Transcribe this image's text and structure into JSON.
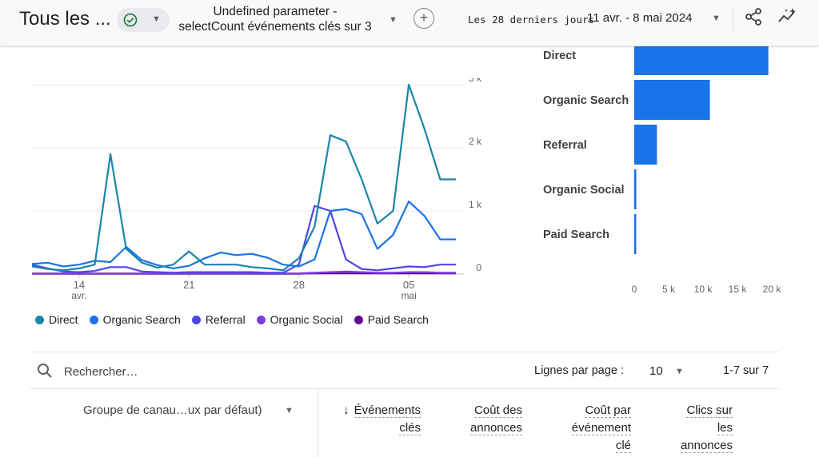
{
  "header": {
    "title": "Tous les ...",
    "comparison_line1": "Undefined parameter -",
    "comparison_line2": "selectCount événements clés sur 3",
    "add_label": "+",
    "date_range_label": "Les 28 derniers jours",
    "date_range_value": "11 avr. - 8 mai 2024"
  },
  "colors": {
    "Direct": "#1a85a8",
    "Organic Search": "#1a73e8",
    "Referral": "#4f46e5",
    "Organic Social": "#7e3ce0",
    "Paid Search": "#5b0f8f",
    "bar": "#1a73e8"
  },
  "chart_data": [
    {
      "type": "line",
      "x_tick_labels": [
        "14",
        "21",
        "28",
        "05"
      ],
      "x_tick_sublabels": [
        "avr.",
        "",
        "",
        "mai"
      ],
      "y_tick_labels": [
        "0",
        "1 k",
        "2 k",
        "3 k"
      ],
      "ylim": [
        0,
        3000
      ],
      "x": [
        "2024-04-11",
        "2024-04-12",
        "2024-04-13",
        "2024-04-14",
        "2024-04-15",
        "2024-04-16",
        "2024-04-17",
        "2024-04-18",
        "2024-04-19",
        "2024-04-20",
        "2024-04-21",
        "2024-04-22",
        "2024-04-23",
        "2024-04-24",
        "2024-04-25",
        "2024-04-26",
        "2024-04-27",
        "2024-04-28",
        "2024-04-29",
        "2024-04-30",
        "2024-05-01",
        "2024-05-02",
        "2024-05-03",
        "2024-05-04",
        "2024-05-05",
        "2024-05-06",
        "2024-05-07",
        "2024-05-08"
      ],
      "series": [
        {
          "name": "Direct",
          "values": [
            120,
            80,
            60,
            90,
            150,
            1900,
            400,
            180,
            100,
            150,
            360,
            150,
            150,
            150,
            110,
            90,
            60,
            250,
            750,
            2200,
            2100,
            1500,
            800,
            1000,
            3000,
            2300,
            1500,
            1500
          ]
        },
        {
          "name": "Organic Search",
          "values": [
            160,
            180,
            120,
            150,
            210,
            190,
            430,
            220,
            140,
            90,
            130,
            250,
            340,
            300,
            320,
            260,
            150,
            120,
            230,
            1000,
            1030,
            950,
            400,
            620,
            1150,
            920,
            550,
            550
          ]
        },
        {
          "name": "Referral",
          "values": [
            150,
            90,
            40,
            30,
            50,
            110,
            110,
            40,
            30,
            20,
            30,
            30,
            30,
            30,
            30,
            20,
            20,
            150,
            1080,
            1000,
            230,
            80,
            60,
            90,
            120,
            110,
            150,
            150
          ]
        },
        {
          "name": "Organic Social",
          "values": [
            10,
            10,
            10,
            10,
            10,
            10,
            10,
            10,
            10,
            10,
            10,
            10,
            10,
            10,
            10,
            10,
            10,
            10,
            20,
            30,
            40,
            30,
            20,
            20,
            30,
            30,
            20,
            20
          ]
        },
        {
          "name": "Paid Search",
          "values": [
            5,
            5,
            5,
            5,
            5,
            5,
            5,
            5,
            5,
            5,
            5,
            5,
            5,
            5,
            5,
            5,
            5,
            5,
            10,
            10,
            10,
            10,
            10,
            10,
            10,
            10,
            10,
            10
          ]
        }
      ],
      "legend": [
        "Direct",
        "Organic Search",
        "Referral",
        "Organic Social",
        "Paid Search"
      ],
      "legend_placement": "bottom-left",
      "grid": true
    },
    {
      "type": "bar",
      "orientation": "horizontal",
      "categories": [
        "Direct",
        "Organic Search",
        "Referral",
        "Organic Social",
        "Paid Search"
      ],
      "values": [
        19500,
        11000,
        3300,
        300,
        150
      ],
      "xlim": [
        0,
        20000
      ],
      "x_tick_labels": [
        "0",
        "5 k",
        "10 k",
        "15 k",
        "20 k"
      ],
      "grid": false
    }
  ],
  "table": {
    "search_placeholder": "Rechercher…",
    "rows_per_page_label": "Lignes par page :",
    "rows_per_page_value": "10",
    "page_count": "1-7 sur 7",
    "dimension_header": "Groupe de canau…ux par défaut)",
    "sort_arrow": "↓",
    "columns": [
      {
        "line1": "Événements",
        "line2": "clés",
        "line3": ""
      },
      {
        "line1": "Coût des",
        "line2": "annonces",
        "line3": ""
      },
      {
        "line1": "Coût par",
        "line2": "événement",
        "line3": "clé"
      },
      {
        "line1": "Clics sur",
        "line2": "les",
        "line3": "annonces"
      }
    ]
  }
}
